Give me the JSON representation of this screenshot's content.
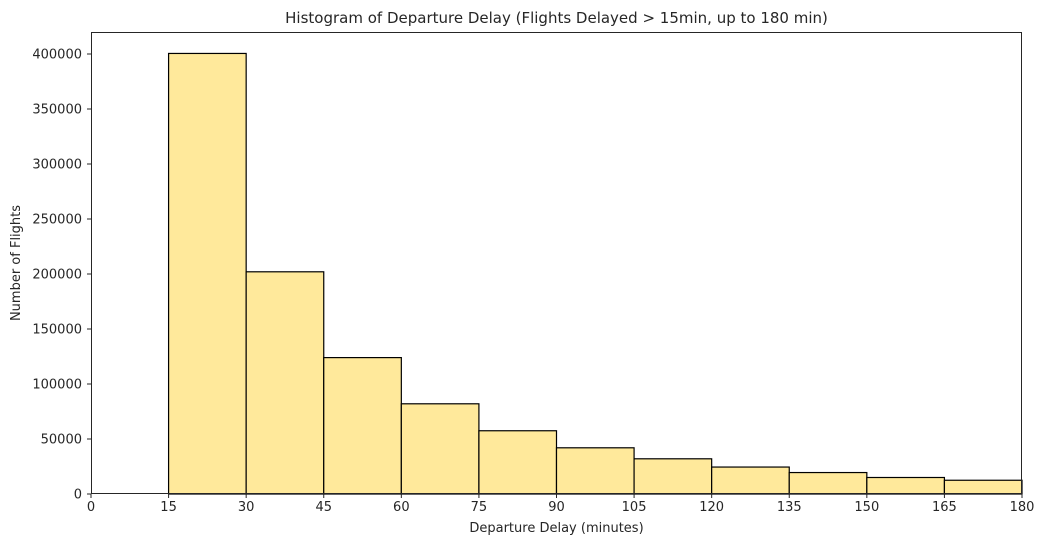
{
  "chart_data": {
    "type": "bar",
    "title": "Histogram of Departure Delay (Flights Delayed > 15min, up to 180 min)",
    "xlabel": "Departure Delay (minutes)",
    "ylabel": "Number of Flights",
    "xlim": [
      0,
      180
    ],
    "ylim": [
      0,
      420000
    ],
    "xticks": [
      0,
      15,
      30,
      45,
      60,
      75,
      90,
      105,
      120,
      135,
      150,
      165,
      180
    ],
    "yticks": [
      0,
      50000,
      100000,
      150000,
      200000,
      250000,
      300000,
      350000,
      400000
    ],
    "bins": [
      {
        "start": 15,
        "end": 30,
        "value": 400500
      },
      {
        "start": 30,
        "end": 45,
        "value": 202000
      },
      {
        "start": 45,
        "end": 60,
        "value": 124000
      },
      {
        "start": 60,
        "end": 75,
        "value": 82000
      },
      {
        "start": 75,
        "end": 90,
        "value": 57500
      },
      {
        "start": 90,
        "end": 105,
        "value": 42000
      },
      {
        "start": 105,
        "end": 120,
        "value": 32000
      },
      {
        "start": 120,
        "end": 135,
        "value": 24500
      },
      {
        "start": 135,
        "end": 150,
        "value": 19500
      },
      {
        "start": 150,
        "end": 165,
        "value": 15000
      },
      {
        "start": 165,
        "end": 180,
        "value": 12500
      }
    ],
    "grid": false,
    "colors": {
      "bar_fill": "#FFE99B",
      "bar_edge": "#000000",
      "axis": "#262626",
      "text": "#262626"
    }
  }
}
